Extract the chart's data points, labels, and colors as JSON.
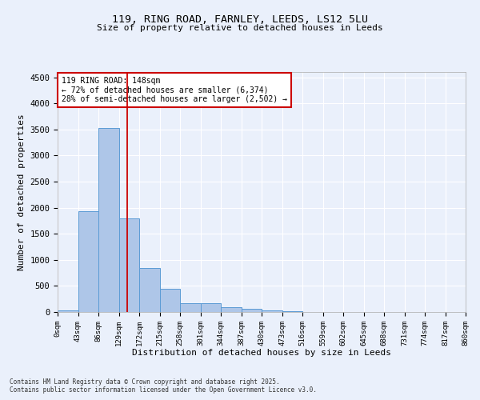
{
  "title": "119, RING ROAD, FARNLEY, LEEDS, LS12 5LU",
  "subtitle": "Size of property relative to detached houses in Leeds",
  "xlabel": "Distribution of detached houses by size in Leeds",
  "ylabel": "Number of detached properties",
  "bin_labels": [
    "0sqm",
    "43sqm",
    "86sqm",
    "129sqm",
    "172sqm",
    "215sqm",
    "258sqm",
    "301sqm",
    "344sqm",
    "387sqm",
    "430sqm",
    "473sqm",
    "516sqm",
    "559sqm",
    "602sqm",
    "645sqm",
    "688sqm",
    "731sqm",
    "774sqm",
    "817sqm",
    "860sqm"
  ],
  "bar_values": [
    30,
    1930,
    3520,
    1800,
    850,
    450,
    175,
    165,
    90,
    55,
    30,
    10,
    5,
    2,
    1,
    1,
    0,
    0,
    0,
    0
  ],
  "bar_color": "#aec6e8",
  "bar_edge_color": "#5b9bd5",
  "background_color": "#eaf0fb",
  "grid_color": "#ffffff",
  "annotation_box_color": "#cc0000",
  "annotation_text_line1": "119 RING ROAD: 148sqm",
  "annotation_text_line2": "← 72% of detached houses are smaller (6,374)",
  "annotation_text_line3": "28% of semi-detached houses are larger (2,502) →",
  "vline_x": 3.43,
  "ylim": [
    0,
    4600
  ],
  "yticks": [
    0,
    500,
    1000,
    1500,
    2000,
    2500,
    3000,
    3500,
    4000,
    4500
  ],
  "footnote1": "Contains HM Land Registry data © Crown copyright and database right 2025.",
  "footnote2": "Contains public sector information licensed under the Open Government Licence v3.0."
}
